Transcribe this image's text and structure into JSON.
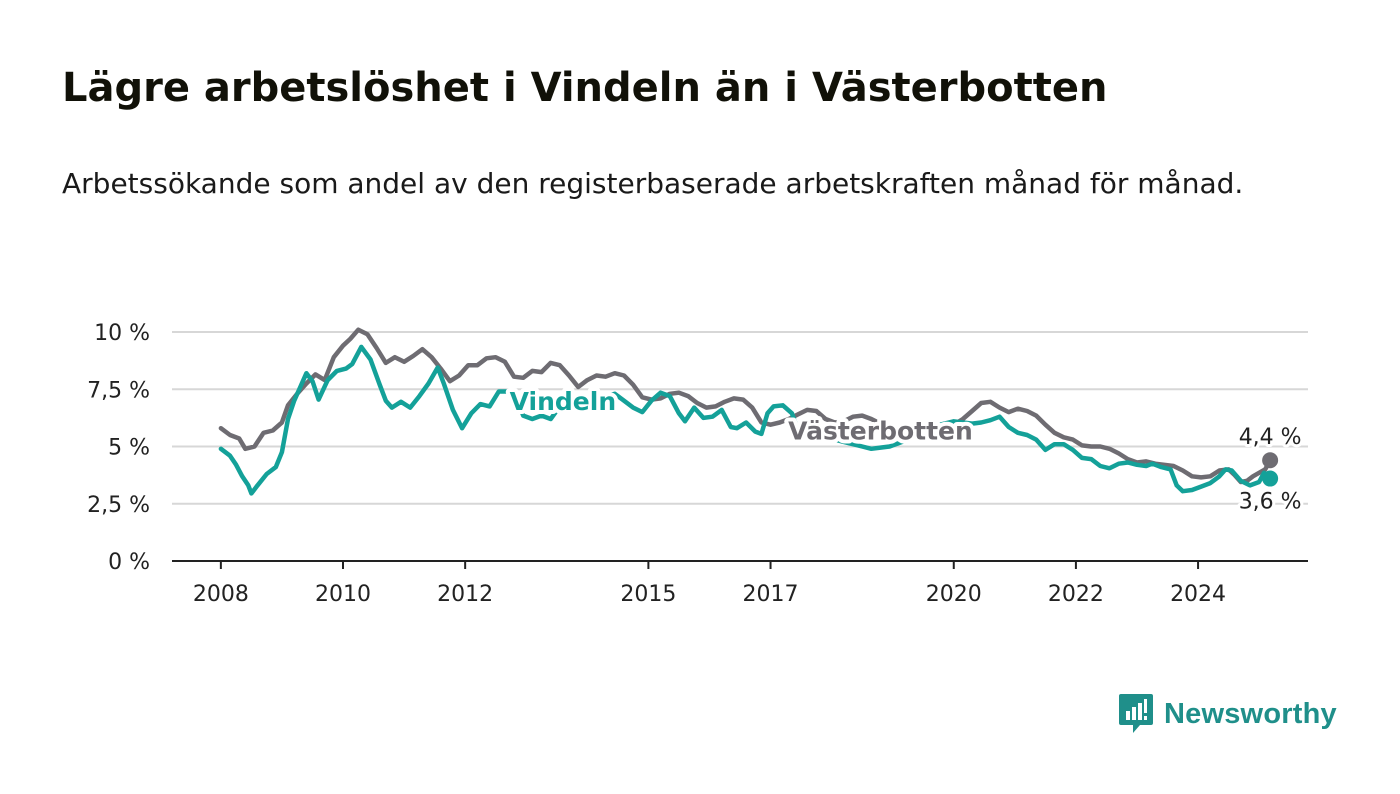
{
  "header": {
    "title": "Lägre arbetslöshet i Vindeln än i Västerbotten",
    "subtitle": "Arbetssökande som andel av den registerbaserade arbetskraften månad för månad."
  },
  "brand": {
    "name": "Newsworthy",
    "logo_icon": "bar-chart-speech-bubble-icon",
    "color": "#1f8f8a"
  },
  "chart_data": {
    "type": "line",
    "title": "Lägre arbetslöshet i Vindeln än i Västerbotten",
    "subtitle": "Arbetssökande som andel av den registerbaserade arbetskraften månad för månad.",
    "xlabel": "",
    "ylabel": "",
    "ylim": [
      0,
      10
    ],
    "yticks": [
      {
        "value": 0,
        "label": "0 %"
      },
      {
        "value": 2.5,
        "label": "2,5 %"
      },
      {
        "value": 5,
        "label": "5 %"
      },
      {
        "value": 7.5,
        "label": "7,5 %"
      },
      {
        "value": 10,
        "label": "10 %"
      }
    ],
    "xlim": [
      2007.2,
      2025.8
    ],
    "xticks": [
      {
        "value": 2008,
        "label": "2008"
      },
      {
        "value": 2010,
        "label": "2010"
      },
      {
        "value": 2012,
        "label": "2012"
      },
      {
        "value": 2015,
        "label": "2015"
      },
      {
        "value": 2017,
        "label": "2017"
      },
      {
        "value": 2020,
        "label": "2020"
      },
      {
        "value": 2022,
        "label": "2022"
      },
      {
        "value": 2024,
        "label": "2024"
      }
    ],
    "grid": true,
    "legend": "inline labels on lines",
    "series": [
      {
        "name": "Västerbotten",
        "color": "#6e6c72",
        "label_at": [
          2018.8,
          5.3
        ],
        "end_label": "4,4 %",
        "points": [
          [
            2008.0,
            5.8
          ],
          [
            2008.15,
            5.5
          ],
          [
            2008.3,
            5.35
          ],
          [
            2008.4,
            4.9
          ],
          [
            2008.55,
            5.0
          ],
          [
            2008.7,
            5.6
          ],
          [
            2008.85,
            5.7
          ],
          [
            2009.0,
            6.05
          ],
          [
            2009.1,
            6.8
          ],
          [
            2009.25,
            7.3
          ],
          [
            2009.4,
            7.75
          ],
          [
            2009.55,
            8.15
          ],
          [
            2009.7,
            7.9
          ],
          [
            2009.85,
            8.9
          ],
          [
            2010.0,
            9.4
          ],
          [
            2010.12,
            9.7
          ],
          [
            2010.25,
            10.1
          ],
          [
            2010.4,
            9.9
          ],
          [
            2010.55,
            9.3
          ],
          [
            2010.7,
            8.65
          ],
          [
            2010.85,
            8.9
          ],
          [
            2011.0,
            8.7
          ],
          [
            2011.15,
            8.95
          ],
          [
            2011.3,
            9.25
          ],
          [
            2011.45,
            8.9
          ],
          [
            2011.6,
            8.4
          ],
          [
            2011.75,
            7.85
          ],
          [
            2011.9,
            8.1
          ],
          [
            2012.05,
            8.55
          ],
          [
            2012.2,
            8.55
          ],
          [
            2012.35,
            8.85
          ],
          [
            2012.5,
            8.9
          ],
          [
            2012.65,
            8.7
          ],
          [
            2012.8,
            8.05
          ],
          [
            2012.95,
            8.0
          ],
          [
            2013.1,
            8.3
          ],
          [
            2013.25,
            8.25
          ],
          [
            2013.4,
            8.65
          ],
          [
            2013.55,
            8.55
          ],
          [
            2013.7,
            8.1
          ],
          [
            2013.85,
            7.6
          ],
          [
            2014.0,
            7.9
          ],
          [
            2014.15,
            8.1
          ],
          [
            2014.3,
            8.05
          ],
          [
            2014.45,
            8.2
          ],
          [
            2014.6,
            8.1
          ],
          [
            2014.75,
            7.7
          ],
          [
            2014.9,
            7.15
          ],
          [
            2015.05,
            7.05
          ],
          [
            2015.2,
            7.1
          ],
          [
            2015.35,
            7.3
          ],
          [
            2015.5,
            7.35
          ],
          [
            2015.65,
            7.2
          ],
          [
            2015.8,
            6.9
          ],
          [
            2015.95,
            6.7
          ],
          [
            2016.1,
            6.75
          ],
          [
            2016.25,
            6.95
          ],
          [
            2016.4,
            7.1
          ],
          [
            2016.55,
            7.05
          ],
          [
            2016.7,
            6.7
          ],
          [
            2016.85,
            6.05
          ],
          [
            2017.0,
            5.95
          ],
          [
            2017.15,
            6.05
          ],
          [
            2017.3,
            6.2
          ],
          [
            2017.45,
            6.4
          ],
          [
            2017.6,
            6.6
          ],
          [
            2017.75,
            6.55
          ],
          [
            2017.9,
            6.2
          ],
          [
            2018.05,
            6.05
          ],
          [
            2018.2,
            6.1
          ],
          [
            2018.35,
            6.3
          ],
          [
            2018.5,
            6.35
          ],
          [
            2018.65,
            6.2
          ],
          [
            2018.8,
            6.0
          ],
          [
            2018.95,
            5.9
          ],
          [
            2019.1,
            5.8
          ],
          [
            2019.25,
            5.75
          ],
          [
            2019.4,
            5.85
          ],
          [
            2019.55,
            5.95
          ],
          [
            2019.7,
            5.9
          ],
          [
            2019.85,
            5.9
          ],
          [
            2020.0,
            5.95
          ],
          [
            2020.15,
            6.2
          ],
          [
            2020.3,
            6.55
          ],
          [
            2020.45,
            6.9
          ],
          [
            2020.6,
            6.95
          ],
          [
            2020.75,
            6.7
          ],
          [
            2020.9,
            6.5
          ],
          [
            2021.05,
            6.65
          ],
          [
            2021.2,
            6.55
          ],
          [
            2021.35,
            6.35
          ],
          [
            2021.5,
            5.95
          ],
          [
            2021.65,
            5.6
          ],
          [
            2021.8,
            5.4
          ],
          [
            2021.95,
            5.3
          ],
          [
            2022.1,
            5.05
          ],
          [
            2022.25,
            5.0
          ],
          [
            2022.4,
            5.0
          ],
          [
            2022.55,
            4.9
          ],
          [
            2022.7,
            4.7
          ],
          [
            2022.85,
            4.45
          ],
          [
            2023.0,
            4.3
          ],
          [
            2023.15,
            4.35
          ],
          [
            2023.3,
            4.25
          ],
          [
            2023.45,
            4.2
          ],
          [
            2023.6,
            4.15
          ],
          [
            2023.75,
            3.95
          ],
          [
            2023.9,
            3.7
          ],
          [
            2024.05,
            3.65
          ],
          [
            2024.2,
            3.7
          ],
          [
            2024.35,
            3.95
          ],
          [
            2024.5,
            4.0
          ],
          [
            2024.6,
            3.75
          ],
          [
            2024.7,
            3.45
          ],
          [
            2024.8,
            3.5
          ],
          [
            2024.9,
            3.7
          ],
          [
            2025.0,
            3.85
          ],
          [
            2025.1,
            4.0
          ],
          [
            2025.18,
            4.4
          ]
        ]
      },
      {
        "name": "Vindeln",
        "color": "#14a199",
        "label_at": [
          2013.6,
          6.6
        ],
        "end_label": "3,6 %",
        "points": [
          [
            2008.0,
            4.9
          ],
          [
            2008.15,
            4.6
          ],
          [
            2008.25,
            4.2
          ],
          [
            2008.35,
            3.7
          ],
          [
            2008.45,
            3.3
          ],
          [
            2008.5,
            2.95
          ],
          [
            2008.6,
            3.3
          ],
          [
            2008.75,
            3.8
          ],
          [
            2008.9,
            4.1
          ],
          [
            2009.0,
            4.75
          ],
          [
            2009.1,
            6.2
          ],
          [
            2009.2,
            7.0
          ],
          [
            2009.3,
            7.6
          ],
          [
            2009.4,
            8.2
          ],
          [
            2009.5,
            7.85
          ],
          [
            2009.6,
            7.05
          ],
          [
            2009.75,
            7.9
          ],
          [
            2009.9,
            8.3
          ],
          [
            2010.05,
            8.4
          ],
          [
            2010.15,
            8.6
          ],
          [
            2010.3,
            9.35
          ],
          [
            2010.45,
            8.8
          ],
          [
            2010.6,
            7.7
          ],
          [
            2010.7,
            7.0
          ],
          [
            2010.8,
            6.7
          ],
          [
            2010.95,
            6.95
          ],
          [
            2011.1,
            6.7
          ],
          [
            2011.25,
            7.2
          ],
          [
            2011.4,
            7.75
          ],
          [
            2011.55,
            8.45
          ],
          [
            2011.65,
            7.75
          ],
          [
            2011.8,
            6.6
          ],
          [
            2011.95,
            5.8
          ],
          [
            2012.1,
            6.45
          ],
          [
            2012.25,
            6.85
          ],
          [
            2012.4,
            6.75
          ],
          [
            2012.55,
            7.4
          ],
          [
            2012.7,
            7.4
          ],
          [
            2012.8,
            7.45
          ],
          [
            2012.95,
            6.35
          ],
          [
            2013.1,
            6.2
          ],
          [
            2013.25,
            6.35
          ],
          [
            2013.4,
            6.2
          ],
          [
            2013.55,
            6.75
          ],
          [
            2013.7,
            6.6
          ],
          [
            2013.85,
            6.8
          ],
          [
            2014.0,
            6.95
          ],
          [
            2014.15,
            7.0
          ],
          [
            2014.3,
            7.2
          ],
          [
            2014.45,
            7.3
          ],
          [
            2014.6,
            7.0
          ],
          [
            2014.75,
            6.7
          ],
          [
            2014.9,
            6.5
          ],
          [
            2015.05,
            7.0
          ],
          [
            2015.2,
            7.35
          ],
          [
            2015.35,
            7.2
          ],
          [
            2015.5,
            6.45
          ],
          [
            2015.6,
            6.1
          ],
          [
            2015.75,
            6.7
          ],
          [
            2015.9,
            6.25
          ],
          [
            2016.05,
            6.3
          ],
          [
            2016.2,
            6.6
          ],
          [
            2016.35,
            5.85
          ],
          [
            2016.45,
            5.8
          ],
          [
            2016.6,
            6.05
          ],
          [
            2016.75,
            5.65
          ],
          [
            2016.85,
            5.55
          ],
          [
            2016.95,
            6.45
          ],
          [
            2017.05,
            6.75
          ],
          [
            2017.2,
            6.8
          ],
          [
            2017.35,
            6.45
          ],
          [
            2017.45,
            5.7
          ],
          [
            2017.6,
            5.8
          ],
          [
            2017.75,
            5.6
          ],
          [
            2017.9,
            5.4
          ],
          [
            2018.05,
            5.3
          ],
          [
            2018.2,
            5.2
          ],
          [
            2018.35,
            5.1
          ],
          [
            2018.5,
            5.0
          ],
          [
            2018.65,
            4.9
          ],
          [
            2018.8,
            4.95
          ],
          [
            2018.95,
            5.0
          ],
          [
            2019.1,
            5.15
          ],
          [
            2019.25,
            5.3
          ],
          [
            2019.4,
            5.5
          ],
          [
            2019.55,
            5.7
          ],
          [
            2019.7,
            5.9
          ],
          [
            2019.85,
            6.0
          ],
          [
            2020.0,
            6.1
          ],
          [
            2020.15,
            6.05
          ],
          [
            2020.3,
            6.0
          ],
          [
            2020.45,
            6.05
          ],
          [
            2020.6,
            6.15
          ],
          [
            2020.75,
            6.3
          ],
          [
            2020.9,
            5.85
          ],
          [
            2021.05,
            5.6
          ],
          [
            2021.2,
            5.5
          ],
          [
            2021.35,
            5.3
          ],
          [
            2021.5,
            4.85
          ],
          [
            2021.65,
            5.1
          ],
          [
            2021.8,
            5.1
          ],
          [
            2021.95,
            4.85
          ],
          [
            2022.1,
            4.5
          ],
          [
            2022.25,
            4.45
          ],
          [
            2022.4,
            4.15
          ],
          [
            2022.55,
            4.05
          ],
          [
            2022.7,
            4.25
          ],
          [
            2022.85,
            4.3
          ],
          [
            2023.0,
            4.2
          ],
          [
            2023.15,
            4.15
          ],
          [
            2023.25,
            4.25
          ],
          [
            2023.4,
            4.1
          ],
          [
            2023.55,
            4.0
          ],
          [
            2023.65,
            3.3
          ],
          [
            2023.75,
            3.05
          ],
          [
            2023.9,
            3.1
          ],
          [
            2024.05,
            3.25
          ],
          [
            2024.2,
            3.4
          ],
          [
            2024.35,
            3.7
          ],
          [
            2024.45,
            4.0
          ],
          [
            2024.55,
            3.95
          ],
          [
            2024.7,
            3.5
          ],
          [
            2024.85,
            3.3
          ],
          [
            2025.0,
            3.45
          ],
          [
            2025.08,
            3.85
          ],
          [
            2025.18,
            3.6
          ]
        ]
      }
    ]
  }
}
